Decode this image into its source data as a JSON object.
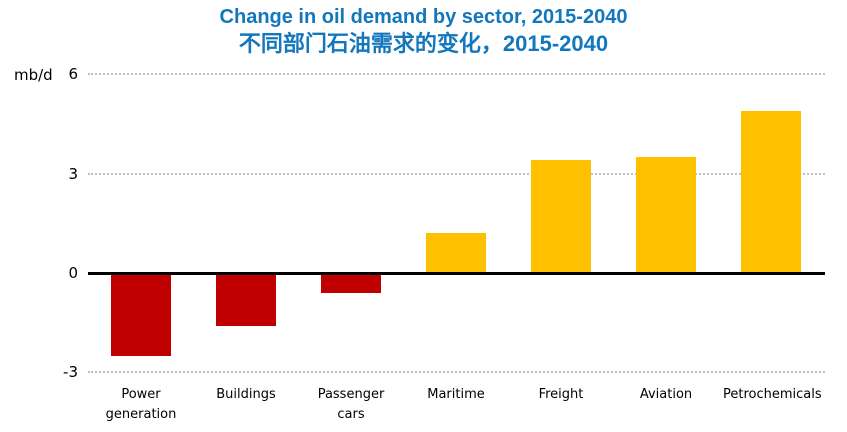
{
  "header": {
    "title": "Change in oil demand by sector, 2015-2040",
    "subtitle": "不同部门石油需求的变化，2015-2040"
  },
  "axis": {
    "unit_label": "mb/d"
  },
  "chart_data": {
    "type": "bar",
    "categories": [
      "Power generation",
      "Buildings",
      "Passenger cars",
      "Maritime",
      "Freight",
      "Aviation",
      "Petrochemicals"
    ],
    "values": [
      -2.5,
      -1.6,
      -0.6,
      1.2,
      3.4,
      3.5,
      4.9
    ],
    "title": "Change in oil demand by sector, 2015-2040",
    "subtitle_chinese": "不同部门石油需求的变化，2015-2040",
    "xlabel": "",
    "ylabel": "mb/d",
    "ylim": [
      -3,
      6
    ],
    "yticks": [
      6,
      3,
      0,
      -3
    ],
    "gridlines": [
      6,
      3,
      -3
    ],
    "grid_style": "dotted horizontal gridlines, solid black zero axis",
    "legend": "none",
    "colors": {
      "positive_bar": "#FFC000",
      "negative_bar": "#C00000",
      "title_blue": "#1377BD",
      "gridline_gray": "#BFBFBF",
      "axis_black": "#000000"
    }
  }
}
